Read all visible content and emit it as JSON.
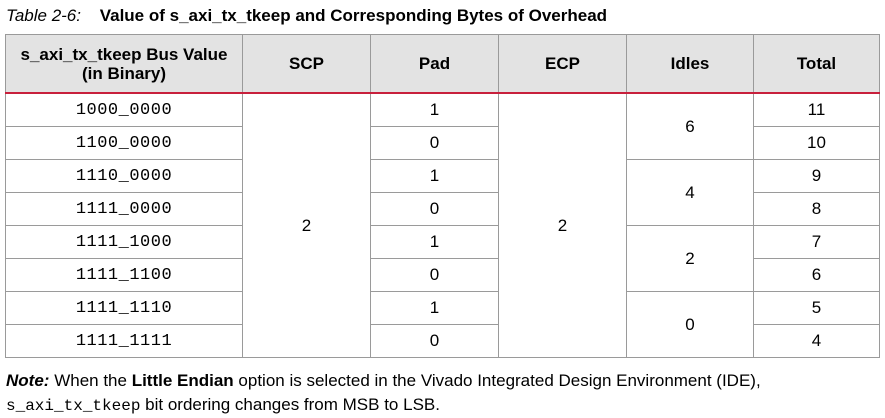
{
  "caption": {
    "number": "Table 2-6:",
    "title": "Value of s_axi_tx_tkeep and Corresponding Bytes of Overhead"
  },
  "table": {
    "headers": {
      "bus_value_line1": "s_axi_tx_tkeep Bus Value",
      "bus_value_line2": "(in Binary)",
      "scp": "SCP",
      "pad": "Pad",
      "ecp": "ECP",
      "idles": "Idles",
      "total": "Total"
    },
    "scp_value": "2",
    "ecp_value": "2",
    "rows": [
      {
        "bus": "1000_0000",
        "pad": "1",
        "total": "11"
      },
      {
        "bus": "1100_0000",
        "pad": "0",
        "total": "10"
      },
      {
        "bus": "1110_0000",
        "pad": "1",
        "total": "9"
      },
      {
        "bus": "1111_0000",
        "pad": "0",
        "total": "8"
      },
      {
        "bus": "1111_1000",
        "pad": "1",
        "total": "7"
      },
      {
        "bus": "1111_1100",
        "pad": "0",
        "total": "6"
      },
      {
        "bus": "1111_1110",
        "pad": "1",
        "total": "5"
      },
      {
        "bus": "1111_1111",
        "pad": "0",
        "total": "4"
      }
    ],
    "idles": [
      "6",
      "4",
      "2",
      "0"
    ]
  },
  "note": {
    "label": "Note:",
    "text1": "When the",
    "emphasis": "Little Endian",
    "text2": "option is selected in the Vivado Integrated Design Environment (IDE),",
    "code": "s_axi_tx_tkeep",
    "text3": "bit ordering changes from MSB to LSB."
  }
}
